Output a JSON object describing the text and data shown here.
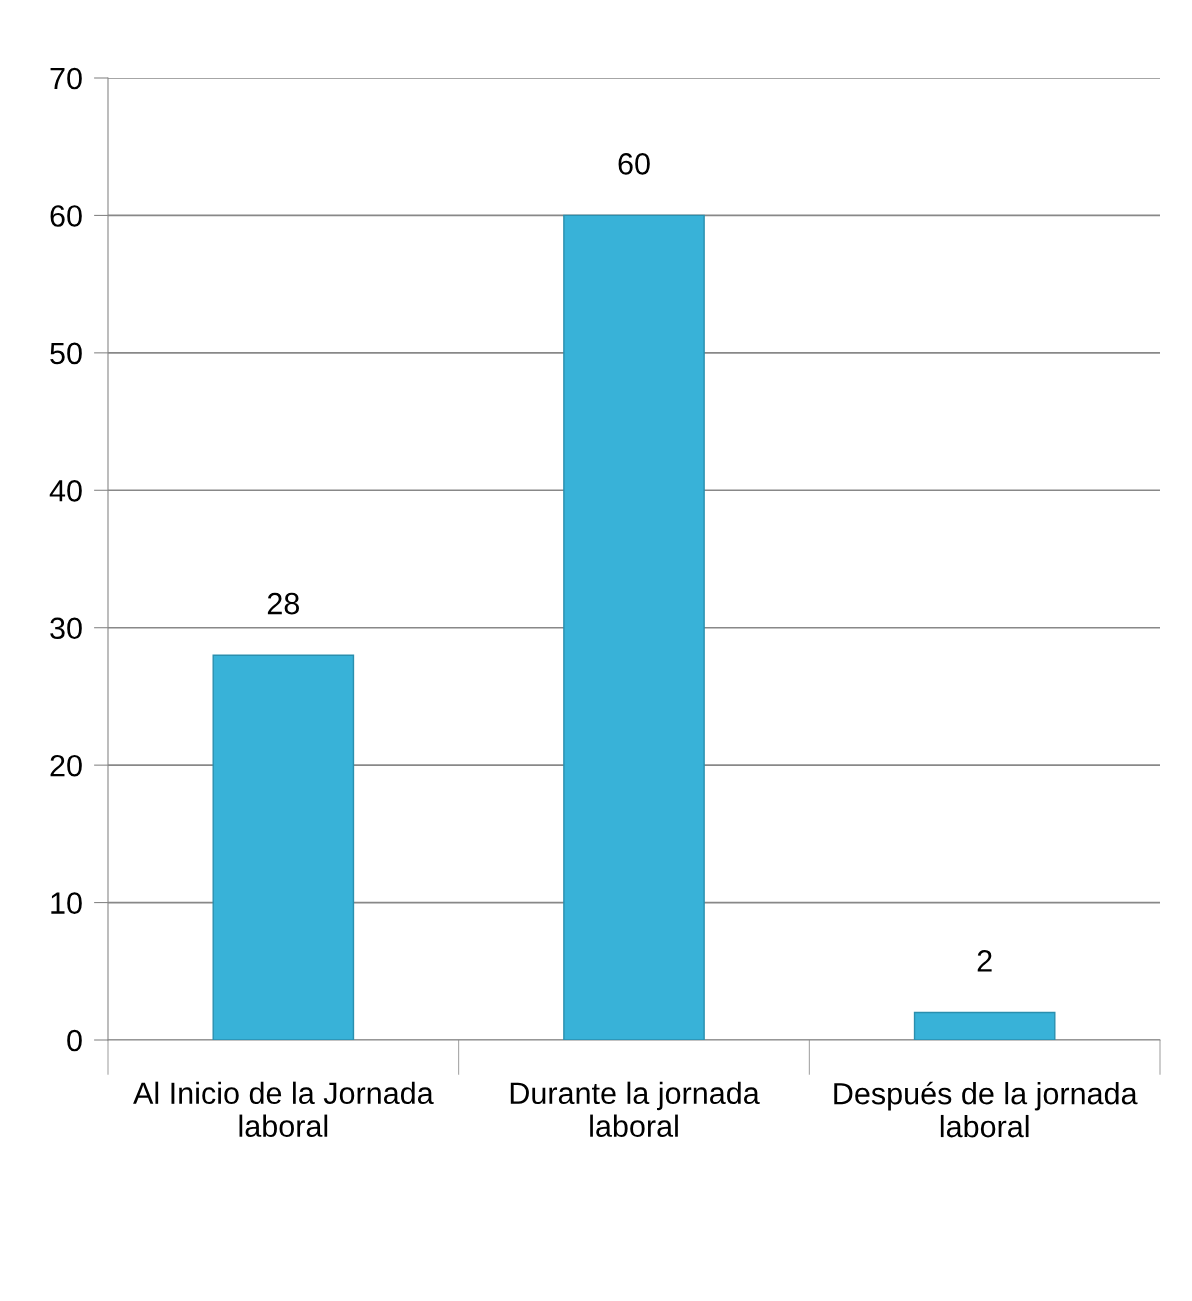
{
  "chart_data": {
    "type": "bar",
    "categories": [
      "Al Inicio de la Jornada\nlaboral",
      "Durante la jornada\nlaboral",
      "Después de la jornada\nlaboral"
    ],
    "values": [
      28,
      60,
      2
    ],
    "color": "#38b2d8",
    "ylim": [
      0,
      70
    ],
    "yticks": [
      0,
      10,
      20,
      30,
      40,
      50,
      60,
      70
    ],
    "grid": "y",
    "data_labels": true
  }
}
